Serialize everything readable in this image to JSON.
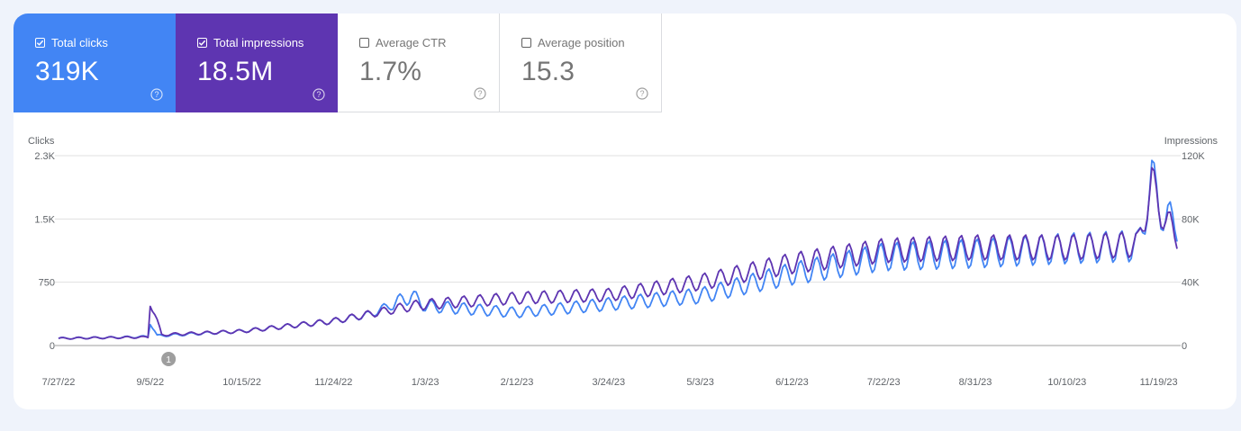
{
  "colors": {
    "clicks": "#4285f4",
    "impressions": "#5e35b1",
    "grid": "#e0e0e0",
    "annotation": "#9e9e9e"
  },
  "metrics": [
    {
      "label": "Total clicks",
      "value": "319K",
      "checked": true,
      "color": "#4285f4",
      "help_icon": "help-circle-icon"
    },
    {
      "label": "Total impressions",
      "value": "18.5M",
      "checked": true,
      "color": "#5e35b1",
      "help_icon": "help-circle-icon"
    },
    {
      "label": "Average CTR",
      "value": "1.7%",
      "checked": false,
      "help_icon": "help-circle-icon"
    },
    {
      "label": "Average position",
      "value": "15.3",
      "checked": false,
      "help_icon": "help-circle-icon"
    }
  ],
  "chart_data": {
    "type": "line",
    "left_axis_title": "Clicks",
    "right_axis_title": "Impressions",
    "left_ticks": [
      "2.3K",
      "1.5K",
      "750",
      "0"
    ],
    "left_tick_values": [
      2250,
      1500,
      750,
      0
    ],
    "right_ticks": [
      "120K",
      "80K",
      "40K",
      "0"
    ],
    "right_tick_values": [
      120000,
      80000,
      40000,
      0
    ],
    "ylim_left": [
      0,
      2250
    ],
    "ylim_right": [
      0,
      120000
    ],
    "x_ticks": [
      "7/27/22",
      "9/5/22",
      "10/15/22",
      "11/24/22",
      "1/3/23",
      "2/12/23",
      "3/24/23",
      "5/3/23",
      "6/12/23",
      "7/22/23",
      "8/31/23",
      "10/10/23",
      "11/19/23"
    ],
    "x_range": [
      "2022-07-27",
      "2023-11-27"
    ],
    "annotation": {
      "label": "1",
      "date": "2022-09-13"
    },
    "grid": true,
    "series": [
      {
        "name": "Clicks",
        "axis": "left",
        "color": "#4285f4",
        "points": [
          [
            "2022-07-27",
            85
          ],
          [
            "2022-08-20",
            95
          ],
          [
            "2022-09-04",
            105
          ],
          [
            "2022-09-05",
            280
          ],
          [
            "2022-09-08",
            115
          ],
          [
            "2022-10-15",
            170
          ],
          [
            "2022-11-24",
            290
          ],
          [
            "2022-12-10",
            370
          ],
          [
            "2022-12-28",
            590
          ],
          [
            "2023-01-03",
            470
          ],
          [
            "2023-02-12",
            390
          ],
          [
            "2023-03-24",
            490
          ],
          [
            "2023-05-03",
            590
          ],
          [
            "2023-06-12",
            850
          ],
          [
            "2023-07-22",
            1050
          ],
          [
            "2023-08-31",
            1090
          ],
          [
            "2023-10-10",
            1150
          ],
          [
            "2023-11-10",
            1180
          ],
          [
            "2023-11-16",
            1950
          ],
          [
            "2023-11-22",
            1480
          ],
          [
            "2023-11-27",
            1460
          ]
        ]
      },
      {
        "name": "Impressions",
        "axis": "right",
        "color": "#5e35b1",
        "points": [
          [
            "2022-07-27",
            4500
          ],
          [
            "2022-08-20",
            5000
          ],
          [
            "2022-09-04",
            5300
          ],
          [
            "2022-09-05",
            28000
          ],
          [
            "2022-09-10",
            6800
          ],
          [
            "2022-10-15",
            9000
          ],
          [
            "2022-11-24",
            15500
          ],
          [
            "2022-12-28",
            25000
          ],
          [
            "2023-01-03",
            26000
          ],
          [
            "2023-02-12",
            30000
          ],
          [
            "2023-03-24",
            32000
          ],
          [
            "2023-05-03",
            40000
          ],
          [
            "2023-06-12",
            52000
          ],
          [
            "2023-07-22",
            60000
          ],
          [
            "2023-08-31",
            62000
          ],
          [
            "2023-10-10",
            62000
          ],
          [
            "2023-11-10",
            64000
          ],
          [
            "2023-11-16",
            102000
          ],
          [
            "2023-11-22",
            78000
          ],
          [
            "2023-11-27",
            70000
          ]
        ]
      }
    ]
  }
}
